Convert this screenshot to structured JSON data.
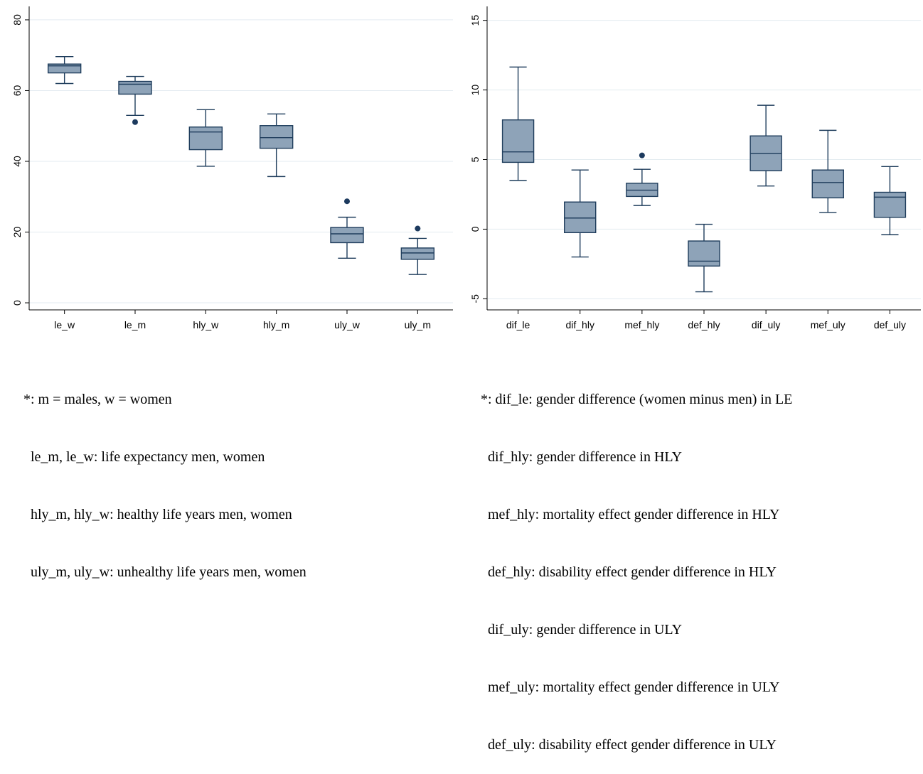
{
  "chart_data": [
    {
      "type": "box",
      "ylim": [
        -2,
        83
      ],
      "yticks": [
        0,
        20,
        40,
        60,
        80
      ],
      "grid": true,
      "categories": [
        "le_w",
        "le_m",
        "hly_w",
        "hly_m",
        "uly_w",
        "uly_m"
      ],
      "boxes": [
        {
          "name": "le_w",
          "whisker_low": 62.0,
          "q1": 65.0,
          "median": 67.0,
          "q3": 67.5,
          "whisker_high": 69.6,
          "outliers": []
        },
        {
          "name": "le_m",
          "whisker_low": 53.0,
          "q1": 59.0,
          "median": 61.8,
          "q3": 62.6,
          "whisker_high": 64.0,
          "outliers": [
            51.1
          ]
        },
        {
          "name": "hly_w",
          "whisker_low": 38.6,
          "q1": 43.3,
          "median": 48.3,
          "q3": 49.7,
          "whisker_high": 54.6,
          "outliers": []
        },
        {
          "name": "hly_m",
          "whisker_low": 35.7,
          "q1": 43.7,
          "median": 46.7,
          "q3": 50.1,
          "whisker_high": 53.4,
          "outliers": []
        },
        {
          "name": "uly_w",
          "whisker_low": 12.6,
          "q1": 17.0,
          "median": 19.5,
          "q3": 21.3,
          "whisker_high": 24.2,
          "outliers": [
            28.7
          ]
        },
        {
          "name": "uly_m",
          "whisker_low": 8.0,
          "q1": 12.3,
          "median": 14.1,
          "q3": 15.5,
          "whisker_high": 18.2,
          "outliers": [
            21.0
          ]
        }
      ]
    },
    {
      "type": "box",
      "ylim": [
        -5.8,
        15.8
      ],
      "yticks": [
        -5,
        0,
        5,
        10,
        15
      ],
      "grid": true,
      "categories": [
        "dif_le",
        "dif_hly",
        "mef_hly",
        "def_hly",
        "dif_uly",
        "mef_uly",
        "def_uly"
      ],
      "boxes": [
        {
          "name": "dif_le",
          "whisker_low": 3.5,
          "q1": 4.8,
          "median": 5.55,
          "q3": 7.85,
          "whisker_high": 11.65,
          "outliers": []
        },
        {
          "name": "dif_hly",
          "whisker_low": -2.0,
          "q1": -0.25,
          "median": 0.8,
          "q3": 1.95,
          "whisker_high": 4.25,
          "outliers": []
        },
        {
          "name": "mef_hly",
          "whisker_low": 1.7,
          "q1": 2.35,
          "median": 2.8,
          "q3": 3.3,
          "whisker_high": 4.3,
          "outliers": [
            5.3
          ]
        },
        {
          "name": "def_hly",
          "whisker_low": -4.5,
          "q1": -2.65,
          "median": -2.3,
          "q3": -0.85,
          "whisker_high": 0.35,
          "outliers": []
        },
        {
          "name": "dif_uly",
          "whisker_low": 3.1,
          "q1": 4.2,
          "median": 5.45,
          "q3": 6.7,
          "whisker_high": 8.9,
          "outliers": []
        },
        {
          "name": "mef_uly",
          "whisker_low": 1.2,
          "q1": 2.25,
          "median": 3.35,
          "q3": 4.25,
          "whisker_high": 7.1,
          "outliers": []
        },
        {
          "name": "def_uly",
          "whisker_low": -0.4,
          "q1": 0.85,
          "median": 2.3,
          "q3": 2.65,
          "whisker_high": 4.5,
          "outliers": []
        }
      ]
    }
  ],
  "colors": {
    "box_fill": "#8ea3b8",
    "box_stroke": "#1f3d5c",
    "outlier": "#1c3a5e",
    "grid": "#e3ebf0",
    "axis": "#000000"
  },
  "notes": {
    "left": [
      "*: m = males, w = women",
      "  le_m, le_w: life expectancy men, women",
      "  hly_m, hly_w: healthy life years men, women",
      "  uly_m, uly_w: unhealthy life years men, women"
    ],
    "right": [
      "*: dif_le: gender difference (women minus men) in LE",
      "  dif_hly: gender difference in HLY",
      "  mef_hly: mortality effect gender difference in HLY",
      "  def_hly: disability effect gender difference in HLY",
      "  dif_uly: gender difference in ULY",
      "  mef_uly: mortality effect gender difference in ULY",
      "  def_uly: disability effect gender difference in ULY"
    ]
  }
}
